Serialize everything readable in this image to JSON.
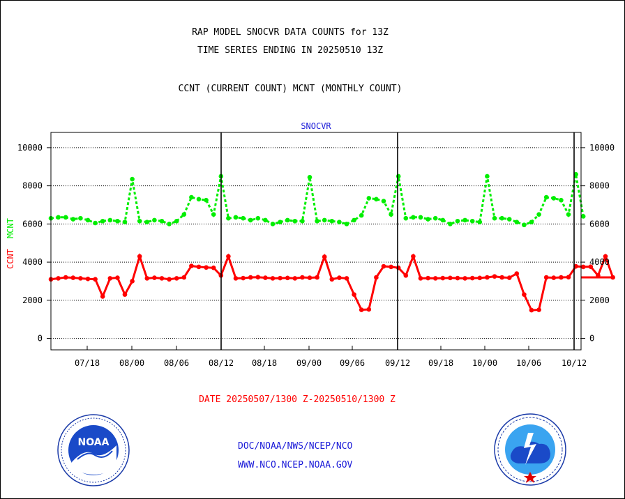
{
  "titles": {
    "line1": "RAP MODEL SNOCVR DATA COUNTS for 13Z",
    "line2": "TIME SERIES ENDING IN 20250510 13Z",
    "line3": "CCNT (CURRENT COUNT) MCNT (MONTHLY COUNT)"
  },
  "footer": {
    "date_range": "DATE 20250507/1300 Z-20250510/1300 Z",
    "org_path": "DOC/NOAA/NWS/NCEP/NCO",
    "website": "WWW.NCO.NCEP.NOAA.GOV"
  },
  "logos": {
    "left": {
      "icon": "noaa-logo",
      "text": "NOAA"
    },
    "right": {
      "icon": "nws-logo"
    }
  },
  "colors": {
    "ccnt": "#ff0000",
    "mcnt": "#00ee00",
    "dates": "#ff0000",
    "links": "#1a1ad8"
  },
  "chart_data": {
    "type": "line",
    "title": "SNOCVR",
    "ylabel_left": [
      "CCNT",
      "MCNT"
    ],
    "ylim": [
      -600,
      10800
    ],
    "yticks": [
      0,
      2000,
      4000,
      6000,
      8000,
      10000
    ],
    "ytick_labels": [
      "0",
      "2000",
      "4000",
      "6000",
      "8000",
      "10000"
    ],
    "xtick_labels": [
      "07/18",
      "08/00",
      "08/06",
      "08/12",
      "08/18",
      "09/00",
      "09/06",
      "09/12",
      "09/18",
      "10/00",
      "10/06",
      "10/12"
    ],
    "grid": true,
    "series": [
      {
        "name": "CCNT",
        "values": [
          3100,
          3150,
          3200,
          3180,
          3150,
          3120,
          3100,
          2200,
          3150,
          3180,
          2300,
          3000,
          4300,
          3150,
          3180,
          3150,
          3100,
          3150,
          3200,
          3800,
          3750,
          3720,
          3700,
          3300,
          4300,
          3150,
          3160,
          3200,
          3210,
          3180,
          3150,
          3160,
          3170,
          3150,
          3200,
          3180,
          3200,
          4280,
          3100,
          3180,
          3150,
          2300,
          1500,
          1520,
          3200,
          3780,
          3750,
          3700,
          3300,
          4300,
          3150,
          3160,
          3150,
          3160,
          3170,
          3160,
          3150,
          3160,
          3170,
          3200,
          3250,
          3200,
          3180,
          3400,
          2300,
          1480,
          1500,
          3200,
          3180,
          3200,
          3210,
          3780,
          3750,
          3760,
          3300,
          4300,
          3200
        ],
        "extra_point": 3200
      },
      {
        "name": "MCNT",
        "values": [
          6300,
          6350,
          6350,
          6250,
          6300,
          6200,
          6050,
          6150,
          6200,
          6150,
          6100,
          8350,
          6150,
          6100,
          6200,
          6150,
          6000,
          6150,
          6500,
          7400,
          7300,
          7250,
          6500,
          8500,
          6300,
          6350,
          6300,
          6200,
          6300,
          6200,
          6000,
          6100,
          6200,
          6150,
          6150,
          8450,
          6150,
          6200,
          6150,
          6100,
          6000,
          6200,
          6450,
          7350,
          7300,
          7200,
          6500,
          8500,
          6300,
          6350,
          6350,
          6250,
          6300,
          6200,
          6000,
          6150,
          6200,
          6150,
          6100,
          8500,
          6300,
          6300,
          6250,
          6100,
          5950,
          6100,
          6500,
          7400,
          7350,
          7250,
          6500,
          8600,
          6400
        ],
        "extra_point": 6400
      }
    ]
  }
}
